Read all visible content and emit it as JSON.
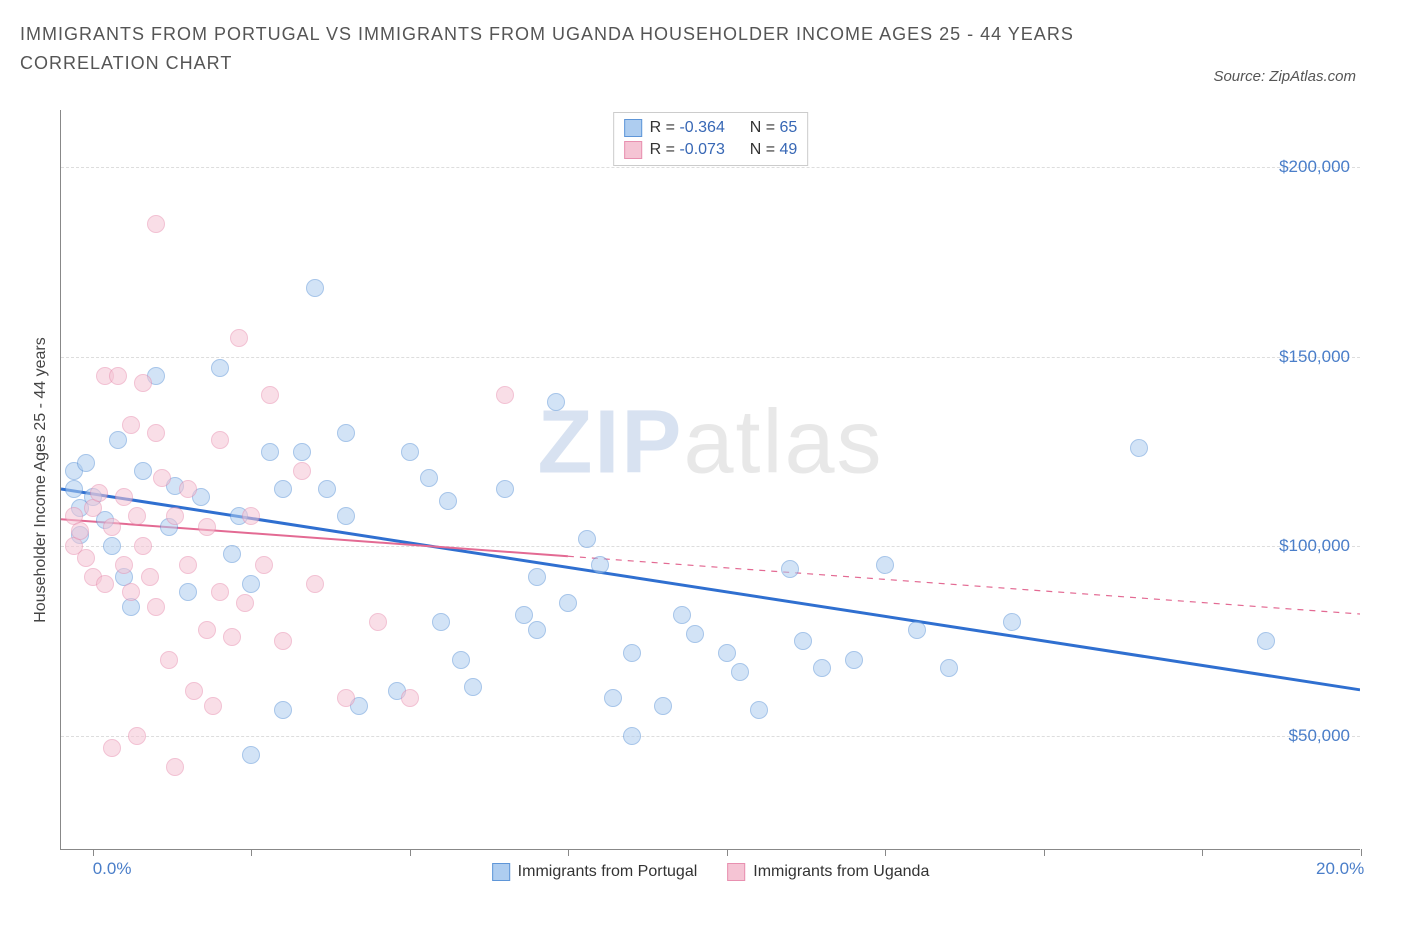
{
  "title": "IMMIGRANTS FROM PORTUGAL VS IMMIGRANTS FROM UGANDA HOUSEHOLDER INCOME AGES 25 - 44 YEARS CORRELATION CHART",
  "source_label": "Source: ZipAtlas.com",
  "y_axis_title": "Householder Income Ages 25 - 44 years",
  "watermark_a": "ZIP",
  "watermark_b": "atlas",
  "chart": {
    "type": "scatter",
    "background_color": "#ffffff",
    "grid_color": "#dddddd",
    "axis_color": "#888888",
    "font_family": "Arial",
    "title_fontsize": 18,
    "label_fontsize": 16,
    "tick_fontsize": 17,
    "tick_color": "#4a7ec9",
    "xlim": [
      -0.5,
      20.0
    ],
    "ylim": [
      20000,
      215000
    ],
    "x_ticks": [
      0.0,
      2.5,
      5.0,
      7.5,
      10.0,
      12.5,
      15.0,
      17.5,
      20.0
    ],
    "x_tick_labels": {
      "0": "0.0%",
      "20": "20.0%"
    },
    "y_grid": [
      50000,
      100000,
      150000,
      200000
    ],
    "y_tick_labels": [
      "$50,000",
      "$100,000",
      "$150,000",
      "$200,000"
    ],
    "marker_radius": 9,
    "marker_opacity": 0.55,
    "marker_border_opacity": 0.9,
    "series": [
      {
        "name": "Immigrants from Portugal",
        "color_fill": "#aecdf0",
        "color_border": "#5f96d8",
        "trend_color": "#2f6fd0",
        "trend_width": 3,
        "trend_dash": "none",
        "R": "-0.364",
        "N": "65",
        "trend": {
          "x1": -0.5,
          "y1": 115000,
          "x2": 20.0,
          "y2": 62000
        },
        "points": [
          [
            -0.3,
            120000
          ],
          [
            -0.3,
            115000
          ],
          [
            -0.2,
            110000
          ],
          [
            -0.2,
            103000
          ],
          [
            -0.1,
            122000
          ],
          [
            0.0,
            113000
          ],
          [
            0.2,
            107000
          ],
          [
            0.3,
            100000
          ],
          [
            0.4,
            128000
          ],
          [
            0.5,
            92000
          ],
          [
            0.6,
            84000
          ],
          [
            0.8,
            120000
          ],
          [
            1.0,
            145000
          ],
          [
            1.2,
            105000
          ],
          [
            1.3,
            116000
          ],
          [
            1.5,
            88000
          ],
          [
            1.7,
            113000
          ],
          [
            2.0,
            147000
          ],
          [
            2.2,
            98000
          ],
          [
            2.3,
            108000
          ],
          [
            2.5,
            90000
          ],
          [
            2.5,
            45000
          ],
          [
            2.8,
            125000
          ],
          [
            3.0,
            115000
          ],
          [
            3.0,
            57000
          ],
          [
            3.3,
            125000
          ],
          [
            3.5,
            168000
          ],
          [
            3.7,
            115000
          ],
          [
            4.0,
            130000
          ],
          [
            4.0,
            108000
          ],
          [
            4.2,
            58000
          ],
          [
            4.8,
            62000
          ],
          [
            5.0,
            125000
          ],
          [
            5.3,
            118000
          ],
          [
            5.5,
            80000
          ],
          [
            5.6,
            112000
          ],
          [
            5.8,
            70000
          ],
          [
            6.0,
            63000
          ],
          [
            6.5,
            115000
          ],
          [
            6.8,
            82000
          ],
          [
            7.0,
            92000
          ],
          [
            7.0,
            78000
          ],
          [
            7.3,
            138000
          ],
          [
            7.5,
            85000
          ],
          [
            7.8,
            102000
          ],
          [
            8.0,
            95000
          ],
          [
            8.2,
            60000
          ],
          [
            8.5,
            72000
          ],
          [
            8.5,
            50000
          ],
          [
            9.0,
            58000
          ],
          [
            9.3,
            82000
          ],
          [
            9.5,
            77000
          ],
          [
            10.0,
            72000
          ],
          [
            10.2,
            67000
          ],
          [
            10.5,
            57000
          ],
          [
            11.0,
            94000
          ],
          [
            11.2,
            75000
          ],
          [
            11.5,
            68000
          ],
          [
            12.0,
            70000
          ],
          [
            12.5,
            95000
          ],
          [
            13.0,
            78000
          ],
          [
            13.5,
            68000
          ],
          [
            14.5,
            80000
          ],
          [
            16.5,
            126000
          ],
          [
            18.5,
            75000
          ]
        ]
      },
      {
        "name": "Immigrants from Uganda",
        "color_fill": "#f5c4d4",
        "color_border": "#e890b0",
        "trend_color": "#e36a93",
        "trend_width": 2,
        "trend_dash": "solid_then_dash",
        "R": "-0.073",
        "N": "49",
        "trend": {
          "x1": -0.5,
          "y1": 107000,
          "x2": 20.0,
          "y2": 82000
        },
        "points": [
          [
            -0.3,
            108000
          ],
          [
            -0.3,
            100000
          ],
          [
            -0.2,
            104000
          ],
          [
            -0.1,
            97000
          ],
          [
            0.0,
            110000
          ],
          [
            0.0,
            92000
          ],
          [
            0.1,
            114000
          ],
          [
            0.2,
            145000
          ],
          [
            0.2,
            90000
          ],
          [
            0.3,
            105000
          ],
          [
            0.3,
            47000
          ],
          [
            0.4,
            145000
          ],
          [
            0.5,
            113000
          ],
          [
            0.5,
            95000
          ],
          [
            0.6,
            132000
          ],
          [
            0.6,
            88000
          ],
          [
            0.7,
            108000
          ],
          [
            0.7,
            50000
          ],
          [
            0.8,
            143000
          ],
          [
            0.8,
            100000
          ],
          [
            0.9,
            92000
          ],
          [
            1.0,
            185000
          ],
          [
            1.0,
            130000
          ],
          [
            1.0,
            84000
          ],
          [
            1.1,
            118000
          ],
          [
            1.2,
            70000
          ],
          [
            1.3,
            108000
          ],
          [
            1.3,
            42000
          ],
          [
            1.5,
            115000
          ],
          [
            1.5,
            95000
          ],
          [
            1.6,
            62000
          ],
          [
            1.8,
            105000
          ],
          [
            1.8,
            78000
          ],
          [
            1.9,
            58000
          ],
          [
            2.0,
            128000
          ],
          [
            2.0,
            88000
          ],
          [
            2.2,
            76000
          ],
          [
            2.3,
            155000
          ],
          [
            2.4,
            85000
          ],
          [
            2.5,
            108000
          ],
          [
            2.7,
            95000
          ],
          [
            2.8,
            140000
          ],
          [
            3.0,
            75000
          ],
          [
            3.3,
            120000
          ],
          [
            3.5,
            90000
          ],
          [
            4.0,
            60000
          ],
          [
            4.5,
            80000
          ],
          [
            5.0,
            60000
          ],
          [
            6.5,
            140000
          ]
        ]
      }
    ]
  },
  "legend_top": {
    "r_label": "R =",
    "n_label": "N ="
  },
  "legend_bottom_labels": [
    "Immigrants from Portugal",
    "Immigrants from Uganda"
  ]
}
